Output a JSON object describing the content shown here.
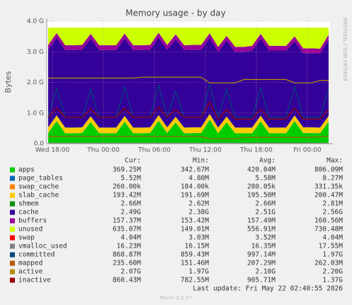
{
  "chart_data": {
    "type": "area",
    "title": "Memory usage - by day",
    "y_label": "Bytes",
    "side_text": "RRDTOOL / TOBI OETIKER",
    "footer": "Last update: Fri May 22 02:40:55 2026",
    "version": "Munin 2.0.57",
    "legend_headers": [
      "Cur:",
      "Min:",
      "Avg:",
      "Max:"
    ],
    "grid": true,
    "x": [
      17.5,
      18.5,
      19.5,
      20.5,
      21.5,
      22.5,
      23.5,
      24.5,
      25.5,
      26.5,
      27.5,
      28.5,
      29.5,
      30.5,
      31.5,
      32.5,
      33.5,
      34.5,
      35.5,
      36.5,
      37.5,
      38.5,
      39.5,
      40.5,
      41.5,
      42.5,
      43.5,
      44.5,
      45.5,
      46.5,
      47.5,
      48.5,
      49.5,
      50.5
    ],
    "xlim": [
      17.33,
      50.67
    ],
    "xticks": [
      {
        "value": 18,
        "label": "Wed 18:00"
      },
      {
        "value": 24,
        "label": "Thu 00:00"
      },
      {
        "value": 30,
        "label": "Thu 06:00"
      },
      {
        "value": 36,
        "label": "Thu 12:00"
      },
      {
        "value": 42,
        "label": "Thu 18:00"
      },
      {
        "value": 48,
        "label": "Fri 00:00"
      }
    ],
    "ylim": [
      0,
      4294967296
    ],
    "yticks": [
      {
        "value": 0,
        "label": "0.0"
      },
      {
        "value": 1073741824,
        "label": "1.0 G"
      },
      {
        "value": 2147483648,
        "label": "2.0 G"
      },
      {
        "value": 3221225472,
        "label": "3.0 G"
      },
      {
        "value": 4294967296,
        "label": "4.0 G"
      }
    ],
    "series": [
      {
        "name": "apps",
        "style": "area",
        "color": "#00CC00",
        "cur": "369.25M",
        "min": "342.67M",
        "avg": "420.04M",
        "max": "806.09M",
        "values": [
          370000000.0,
          790000000.0,
          360000000.0,
          360000000.0,
          370000000.0,
          760000000.0,
          360000000.0,
          360000000.0,
          360000000.0,
          770000000.0,
          360000000.0,
          360000000.0,
          370000000.0,
          800000000.0,
          370000000.0,
          740000000.0,
          360000000.0,
          370000000.0,
          370000000.0,
          840000000.0,
          360000000.0,
          750000000.0,
          360000000.0,
          360000000.0,
          360000000.0,
          780000000.0,
          360000000.0,
          360000000.0,
          360000000.0,
          790000000.0,
          370000000.0,
          370000000.0,
          360000000.0,
          770000000.0
        ]
      },
      {
        "name": "page_tables",
        "style": "area",
        "color": "#0066B3",
        "cur": "5.52M",
        "min": "4.80M",
        "avg": "5.58M",
        "max": "8.27M",
        "values": [
          5600000.0,
          5600000.0,
          5600000.0,
          5600000.0,
          5600000.0,
          5600000.0,
          5600000.0,
          5600000.0,
          5600000.0,
          5600000.0,
          5600000.0,
          5600000.0,
          5600000.0,
          5600000.0,
          5600000.0,
          5600000.0,
          5600000.0,
          5600000.0,
          5600000.0,
          5600000.0,
          5600000.0,
          5600000.0,
          5600000.0,
          5600000.0,
          5600000.0,
          5600000.0,
          5600000.0,
          5600000.0,
          5600000.0,
          5600000.0,
          5600000.0,
          5600000.0,
          5600000.0,
          5600000.0
        ]
      },
      {
        "name": "swap_cache",
        "style": "area",
        "color": "#FF8000",
        "cur": "260.00k",
        "min": "184.00k",
        "avg": "280.05k",
        "max": "331.35k",
        "values": [
          280000.0,
          280000.0,
          280000.0,
          280000.0,
          280000.0,
          280000.0,
          280000.0,
          280000.0,
          280000.0,
          280000.0,
          280000.0,
          280000.0,
          280000.0,
          280000.0,
          280000.0,
          280000.0,
          280000.0,
          280000.0,
          280000.0,
          280000.0,
          280000.0,
          280000.0,
          280000.0,
          280000.0,
          280000.0,
          280000.0,
          280000.0,
          280000.0,
          280000.0,
          280000.0,
          280000.0,
          280000.0,
          280000.0,
          280000.0
        ]
      },
      {
        "name": "slab_cache",
        "style": "area",
        "color": "#FFCC00",
        "cur": "193.42M",
        "min": "191.69M",
        "avg": "195.50M",
        "max": "200.47M",
        "values": [
          195000000.0,
          195000000.0,
          195000000.0,
          195000000.0,
          195000000.0,
          195000000.0,
          195000000.0,
          195000000.0,
          195000000.0,
          195000000.0,
          195000000.0,
          195000000.0,
          195000000.0,
          195000000.0,
          195000000.0,
          195000000.0,
          195000000.0,
          195000000.0,
          195000000.0,
          195000000.0,
          195000000.0,
          195000000.0,
          195000000.0,
          195000000.0,
          195000000.0,
          195000000.0,
          195000000.0,
          195000000.0,
          195000000.0,
          195000000.0,
          195000000.0,
          195000000.0,
          195000000.0,
          195000000.0
        ]
      },
      {
        "name": "shmem",
        "style": "area",
        "color": "#008F00",
        "cur": "2.66M",
        "min": "2.62M",
        "avg": "2.66M",
        "max": "2.81M",
        "values": [
          2800000.0,
          2800000.0,
          2800000.0,
          2800000.0,
          2800000.0,
          2800000.0,
          2800000.0,
          2800000.0,
          2800000.0,
          2800000.0,
          2800000.0,
          2800000.0,
          2800000.0,
          2800000.0,
          2800000.0,
          2800000.0,
          2800000.0,
          2800000.0,
          2800000.0,
          2800000.0,
          2800000.0,
          2800000.0,
          2800000.0,
          2800000.0,
          2800000.0,
          2800000.0,
          2800000.0,
          2800000.0,
          2800000.0,
          2800000.0,
          2800000.0,
          2800000.0,
          2800000.0,
          2800000.0
        ]
      },
      {
        "name": "cache",
        "style": "area",
        "color": "#330099",
        "cur": "2.49G",
        "min": "2.38G",
        "avg": "2.51G",
        "max": "2.56G",
        "values": [
          2720000000.0,
          2720000000.0,
          2720000000.0,
          2720000000.0,
          2720000000.0,
          2720000000.0,
          2720000000.0,
          2720000000.0,
          2720000000.0,
          2720000000.0,
          2720000000.0,
          2720000000.0,
          2720000000.0,
          2720000000.0,
          2720000000.0,
          2720000000.0,
          2720000000.0,
          2720000000.0,
          2720000000.0,
          2660000000.0,
          2660000000.0,
          2660000000.0,
          2660000000.0,
          2660000000.0,
          2700000000.0,
          2700000000.0,
          2700000000.0,
          2700000000.0,
          2700000000.0,
          2600000000.0,
          2600000000.0,
          2600000000.0,
          2600000000.0,
          2680000000.0
        ]
      },
      {
        "name": "buffers",
        "style": "area",
        "color": "#990099",
        "cur": "157.37M",
        "min": "153.42M",
        "avg": "157.49M",
        "max": "160.56M",
        "values": [
          169000000.0,
          169000000.0,
          169000000.0,
          169000000.0,
          169000000.0,
          169000000.0,
          169000000.0,
          169000000.0,
          169000000.0,
          169000000.0,
          169000000.0,
          169000000.0,
          169000000.0,
          169000000.0,
          169000000.0,
          169000000.0,
          169000000.0,
          169000000.0,
          169000000.0,
          169000000.0,
          169000000.0,
          169000000.0,
          169000000.0,
          169000000.0,
          169000000.0,
          169000000.0,
          169000000.0,
          169000000.0,
          169000000.0,
          169000000.0,
          169000000.0,
          169000000.0,
          169000000.0,
          169000000.0
        ]
      },
      {
        "name": "unused",
        "style": "area",
        "color": "#CCFF00",
        "cur": "635.07M",
        "min": "149.01M",
        "avg": "556.91M",
        "max": "730.48M",
        "values": [
          608000000.0,
          188000000.0,
          618000000.0,
          618000000.0,
          608000000.0,
          218000000.0,
          618000000.0,
          618000000.0,
          618000000.0,
          208000000.0,
          618000000.0,
          618000000.0,
          608000000.0,
          178000000.0,
          608000000.0,
          238000000.0,
          618000000.0,
          608000000.0,
          608000000.0,
          198000000.0,
          678000000.0,
          288000000.0,
          678000000.0,
          678000000.0,
          638000000.0,
          218000000.0,
          638000000.0,
          638000000.0,
          638000000.0,
          308000000.0,
          728000000.0,
          728000000.0,
          738000000.0,
          248000000.0
        ]
      },
      {
        "name": "swap",
        "style": "line",
        "color": "#FF0000",
        "cur": "4.04M",
        "min": "3.03M",
        "avg": "3.52M",
        "max": "4.04M",
        "values": [
          4300000.0,
          4300000.0,
          4300000.0,
          4300000.0,
          4300000.0,
          4300000.0,
          4300000.0,
          4300000.0,
          4300000.0,
          4300000.0,
          4300000.0,
          4300000.0,
          4300000.0,
          4300000.0,
          4300000.0,
          4300000.0,
          4300000.0,
          4300000.0,
          4300000.0,
          4300000.0,
          4300000.0,
          4300000.0,
          4300000.0,
          4300000.0,
          4300000.0,
          4300000.0,
          4300000.0,
          4300000.0,
          4300000.0,
          4300000.0,
          4300000.0,
          4300000.0,
          4300000.0,
          4300000.0
        ]
      },
      {
        "name": "vmalloc_used",
        "style": "line",
        "color": "#808080",
        "cur": "16.23M",
        "min": "16.15M",
        "avg": "16.35M",
        "max": "17.55M",
        "values": [
          17400000.0,
          17400000.0,
          17400000.0,
          17400000.0,
          17400000.0,
          17400000.0,
          17400000.0,
          17400000.0,
          17400000.0,
          17400000.0,
          17400000.0,
          17400000.0,
          17400000.0,
          17400000.0,
          17400000.0,
          17400000.0,
          17400000.0,
          17400000.0,
          17400000.0,
          17400000.0,
          17400000.0,
          17400000.0,
          17400000.0,
          17400000.0,
          17400000.0,
          17400000.0,
          17400000.0,
          17400000.0,
          17400000.0,
          17400000.0,
          17400000.0,
          17400000.0,
          17400000.0,
          17400000.0
        ]
      },
      {
        "name": "committed",
        "style": "line",
        "color": "#00487D",
        "cur": "868.87M",
        "min": "859.43M",
        "avg": "997.14M",
        "max": "1.97G",
        "values": [
          930000000.0,
          1950000000.0,
          930000000.0,
          930000000.0,
          930000000.0,
          1900000000.0,
          930000000.0,
          930000000.0,
          930000000.0,
          2000000000.0,
          930000000.0,
          930000000.0,
          930000000.0,
          2050000000.0,
          930000000.0,
          1850000000.0,
          930000000.0,
          930000000.0,
          930000000.0,
          2100000000.0,
          930000000.0,
          1900000000.0,
          930000000.0,
          930000000.0,
          930000000.0,
          1950000000.0,
          930000000.0,
          930000000.0,
          930000000.0,
          2000000000.0,
          930000000.0,
          930000000.0,
          930000000.0,
          1950000000.0
        ]
      },
      {
        "name": "mapped",
        "style": "line",
        "color": "#B35A00",
        "cur": "235.60M",
        "min": "151.46M",
        "avg": "207.29M",
        "max": "262.03M",
        "values": [
          250000000.0,
          250000000.0,
          250000000.0,
          250000000.0,
          250000000.0,
          250000000.0,
          250000000.0,
          250000000.0,
          250000000.0,
          250000000.0,
          250000000.0,
          250000000.0,
          250000000.0,
          250000000.0,
          250000000.0,
          250000000.0,
          250000000.0,
          250000000.0,
          250000000.0,
          170000000.0,
          170000000.0,
          170000000.0,
          170000000.0,
          220000000.0,
          220000000.0,
          220000000.0,
          220000000.0,
          220000000.0,
          220000000.0,
          220000000.0,
          220000000.0,
          220000000.0,
          250000000.0,
          250000000.0
        ]
      },
      {
        "name": "active",
        "style": "line",
        "color": "#B38F00",
        "cur": "2.07G",
        "min": "1.97G",
        "avg": "2.10G",
        "max": "2.20G",
        "values": [
          2300000000.0,
          2300000000.0,
          2300000000.0,
          2300000000.0,
          2300000000.0,
          2300000000.0,
          2300000000.0,
          2300000000.0,
          2300000000.0,
          2300000000.0,
          2300000000.0,
          2330000000.0,
          2330000000.0,
          2330000000.0,
          2330000000.0,
          2330000000.0,
          2330000000.0,
          2330000000.0,
          2330000000.0,
          2130000000.0,
          2130000000.0,
          2130000000.0,
          2130000000.0,
          2250000000.0,
          2250000000.0,
          2250000000.0,
          2250000000.0,
          2250000000.0,
          2250000000.0,
          2130000000.0,
          2130000000.0,
          2130000000.0,
          2220000000.0,
          2220000000.0
        ]
      },
      {
        "name": "inactive",
        "style": "line",
        "color": "#990000",
        "cur": "860.43M",
        "min": "782.55M",
        "avg": "905.71M",
        "max": "1.37G",
        "values": [
          920000000.0,
          1250000000.0,
          920000000.0,
          920000000.0,
          920000000.0,
          1220000000.0,
          920000000.0,
          920000000.0,
          920000000.0,
          1250000000.0,
          920000000.0,
          920000000.0,
          920000000.0,
          1280000000.0,
          920000000.0,
          1200000000.0,
          920000000.0,
          920000000.0,
          920000000.0,
          1450000000.0,
          860000000.0,
          1200000000.0,
          860000000.0,
          860000000.0,
          860000000.0,
          1220000000.0,
          860000000.0,
          860000000.0,
          860000000.0,
          1250000000.0,
          860000000.0,
          860000000.0,
          860000000.0,
          1200000000.0
        ]
      }
    ]
  }
}
